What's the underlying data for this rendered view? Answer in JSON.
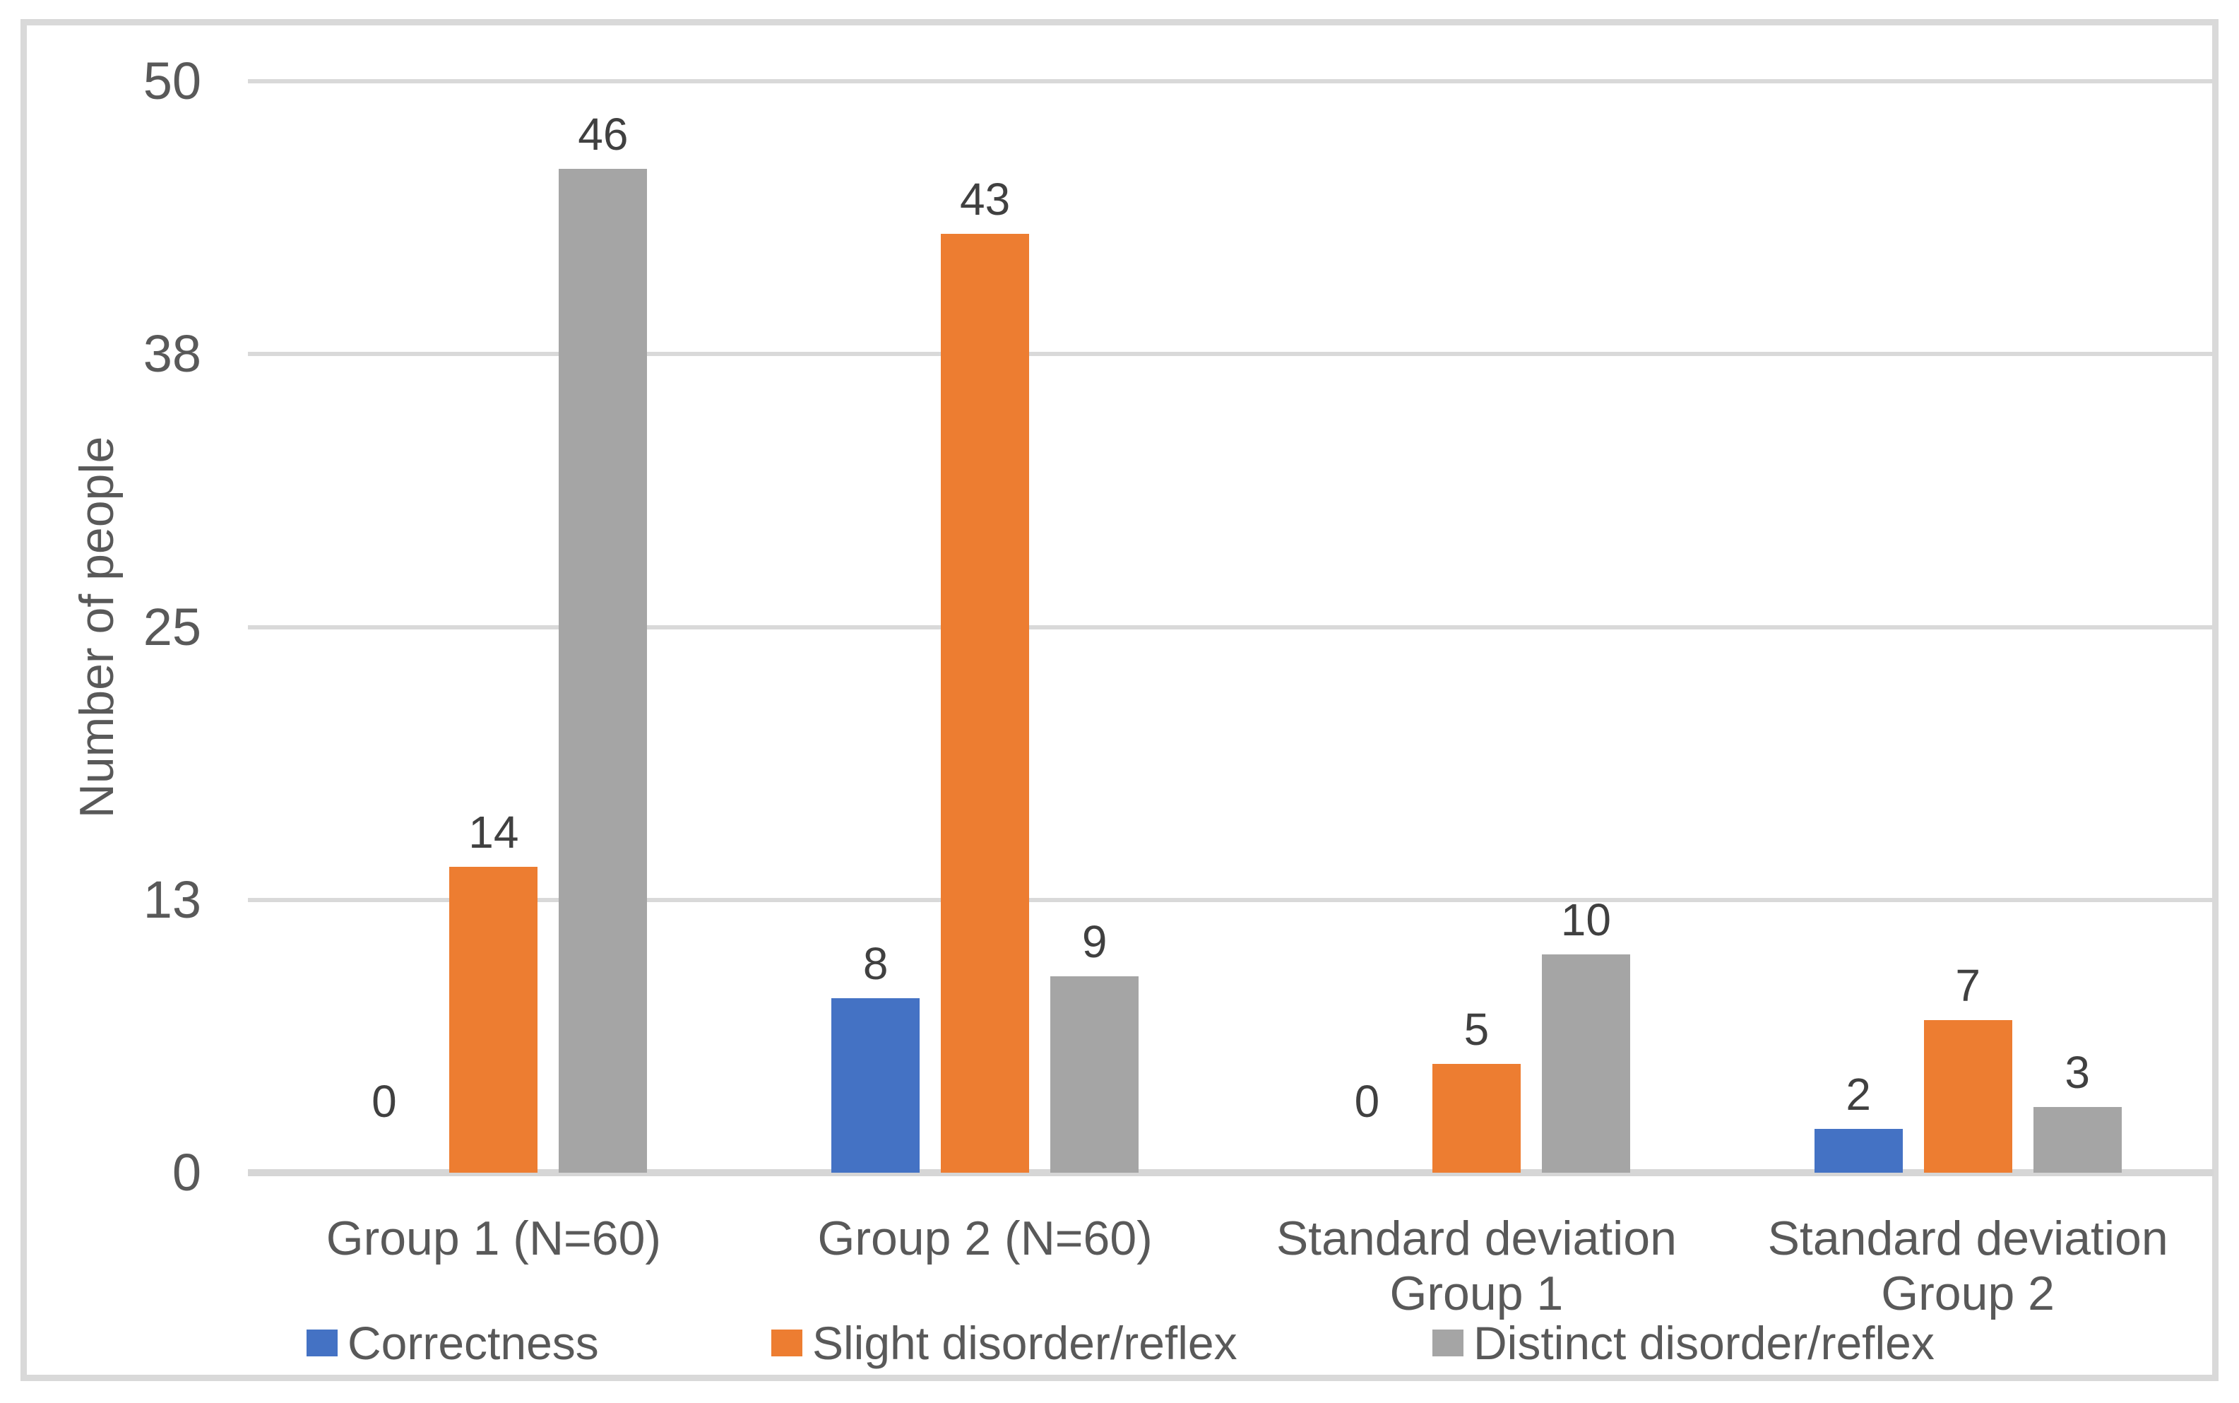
{
  "chart_data": {
    "type": "bar",
    "title": "",
    "ylabel": "Number of people",
    "xlabel": "",
    "ylim": [
      0,
      50
    ],
    "grid": true,
    "legend_position": "bottom",
    "data_labels": true,
    "categories": [
      "Group 1 (N=60)",
      "Group 2 (N=60)",
      "Standard deviation\nGroup 1",
      "Standard deviation\nGroup 2"
    ],
    "series": [
      {
        "name": "Correctness",
        "color": "#4472C4",
        "values": [
          0,
          8,
          0,
          2
        ]
      },
      {
        "name": "Slight disorder/reflex",
        "color": "#ED7D31",
        "values": [
          14,
          43,
          5,
          7
        ]
      },
      {
        "name": "Distinct disorder/reflex",
        "color": "#A5A5A5",
        "values": [
          46,
          9,
          10,
          3
        ]
      }
    ],
    "y_ticks": [
      {
        "label": "0",
        "value": 0
      },
      {
        "label": "13",
        "value": 12.5
      },
      {
        "label": "25",
        "value": 25
      },
      {
        "label": "38",
        "value": 37.5
      },
      {
        "label": "50",
        "value": 50
      }
    ]
  },
  "colors": {
    "frame_border": "#D9D9D9",
    "gridline": "#D9D9D9",
    "axis_text": "#595959",
    "data_label_text": "#404040",
    "background": "#FFFFFF"
  }
}
